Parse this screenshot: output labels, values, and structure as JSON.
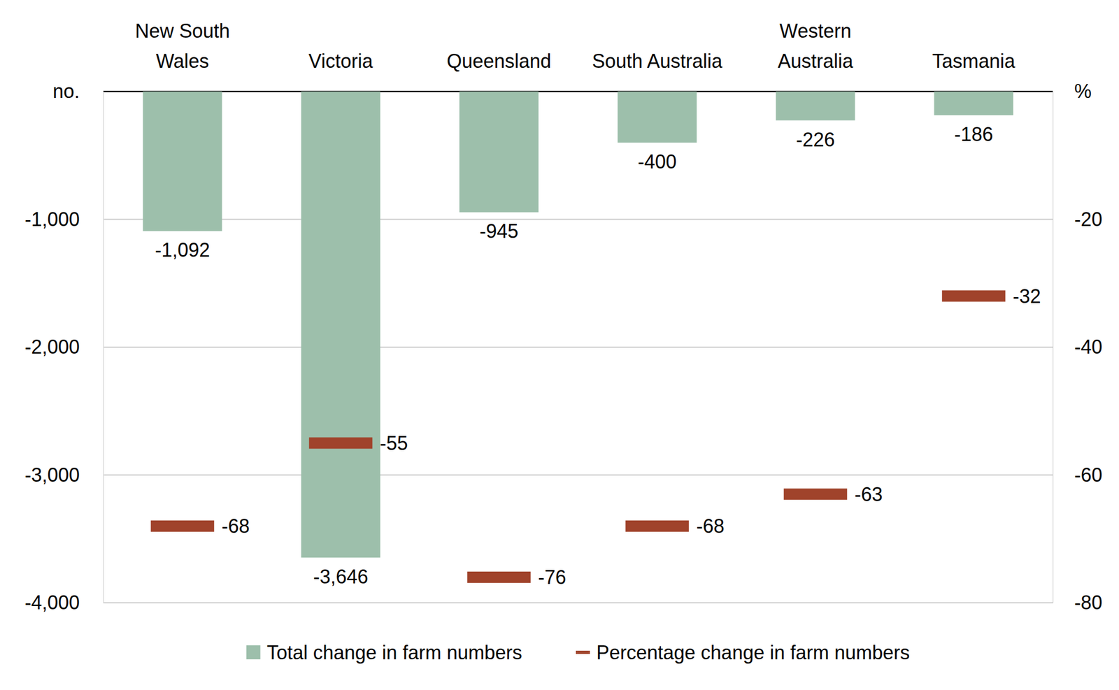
{
  "chart_data": {
    "type": "bar",
    "categories": [
      "New South\nWales",
      "Victoria",
      "Queensland",
      "South Australia",
      "Western\nAustralia",
      "Tasmania"
    ],
    "series": [
      {
        "name": "Total change in farm numbers",
        "type": "bar",
        "color": "#9dbfab",
        "values": [
          -1092,
          -3646,
          -945,
          -400,
          -226,
          -186
        ],
        "value_labels": [
          "-1,092",
          "-3,646",
          "-945",
          "-400",
          "-226",
          "-186"
        ]
      },
      {
        "name": "Percentage change in farm numbers",
        "type": "scatter",
        "marker": "dash",
        "color": "#a0432b",
        "axis": "y2",
        "values": [
          -68,
          -55,
          -76,
          -68,
          -63,
          -32
        ]
      }
    ],
    "ylim": [
      -4000,
      0
    ],
    "yticks": [
      {
        "value": 0,
        "label": "no."
      },
      {
        "value": -1000,
        "label": "-1,000"
      },
      {
        "value": -2000,
        "label": "-2,000"
      },
      {
        "value": -3000,
        "label": "-3,000"
      },
      {
        "value": -4000,
        "label": "-4,000"
      }
    ],
    "y2lim": [
      -80,
      0
    ],
    "y2ticks": [
      {
        "value": 0,
        "label": "%"
      },
      -20,
      -40,
      -60,
      -80
    ],
    "grid": true,
    "data_labels": true,
    "legend": "bottom"
  }
}
